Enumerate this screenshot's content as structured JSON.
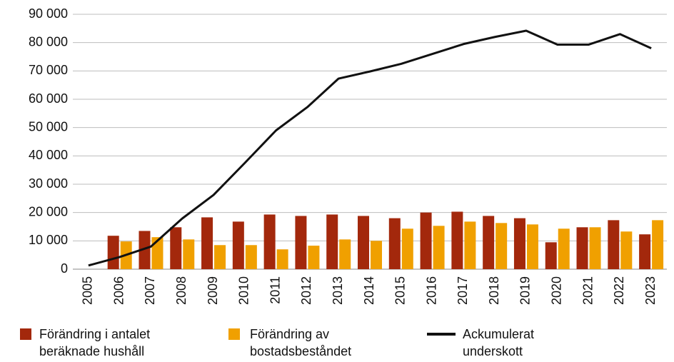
{
  "chart_data": {
    "type": "bar-line",
    "categories": [
      "2005",
      "2006",
      "2007",
      "2008",
      "2009",
      "2010",
      "2011",
      "2012",
      "2013",
      "2014",
      "2015",
      "2016",
      "2017",
      "2018",
      "2019",
      "2020",
      "2021",
      "2022",
      "2023"
    ],
    "series": [
      {
        "name": "Förändring i antalet beräknade hushåll",
        "type": "bar",
        "color": "#a3280c",
        "values": [
          null,
          11800,
          13500,
          14800,
          18300,
          16800,
          19300,
          18800,
          19300,
          18800,
          18000,
          20000,
          20300,
          18800,
          18000,
          9500,
          14800,
          17300,
          12300
        ]
      },
      {
        "name": "Förändring av bostadsbeståndet",
        "type": "bar",
        "color": "#f0a000",
        "values": [
          null,
          9800,
          11300,
          10500,
          8500,
          8500,
          7000,
          8300,
          10500,
          10000,
          14300,
          15300,
          16800,
          16300,
          15800,
          14300,
          14800,
          13300,
          17300
        ]
      },
      {
        "name": "Ackumulerat underskott",
        "type": "line",
        "color": "#111111",
        "values": [
          1300,
          4300,
          8000,
          17900,
          26200,
          37500,
          49000,
          57200,
          67300,
          69800,
          72500,
          76000,
          79500,
          82000,
          84200,
          79300,
          79300,
          83000,
          78000
        ]
      }
    ],
    "ylim": [
      0,
      90000
    ],
    "yticks": [
      0,
      {
        "value": 10000,
        "label": "10 000"
      },
      {
        "value": 20000,
        "label": "20 000"
      },
      {
        "value": 30000,
        "label": "30 000"
      },
      {
        "value": 40000,
        "label": "40 000"
      },
      {
        "value": 50000,
        "label": "50 000"
      },
      {
        "value": 60000,
        "label": "60 000"
      },
      {
        "value": 70000,
        "label": "70 000"
      },
      {
        "value": 80000,
        "label": "80 000"
      },
      {
        "value": 90000,
        "label": "90 000"
      }
    ],
    "grid": true,
    "legend": "bottom"
  }
}
